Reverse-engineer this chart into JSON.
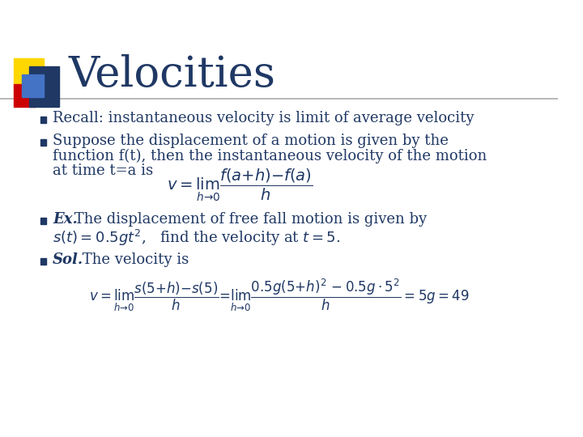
{
  "title": "Velocities",
  "title_color": "#1F3864",
  "title_fontsize": 38,
  "background_color": "#FFFFFF",
  "text_color": "#1F3864",
  "bullet_square_color": "#1F3864",
  "line_color": "#AAAAAA",
  "logo_colors": {
    "yellow": "#FFD700",
    "red": "#CC0000",
    "blue_dark": "#1F3864",
    "blue_light": "#4472C4"
  },
  "bullet1": "Recall: instantaneous velocity is limit of average velocity",
  "bullet2_line1": "Suppose the displacement of a motion is given by the",
  "bullet2_line2": "function f(t), then the instantaneous velocity of the motion",
  "bullet2_line3": "at time t=a is",
  "bullet3_bold": "Ex.",
  "bullet3_rest": " The displacement of free fall motion is given by",
  "bullet4_bold": "Sol.",
  "bullet4_rest": " The velocity is"
}
